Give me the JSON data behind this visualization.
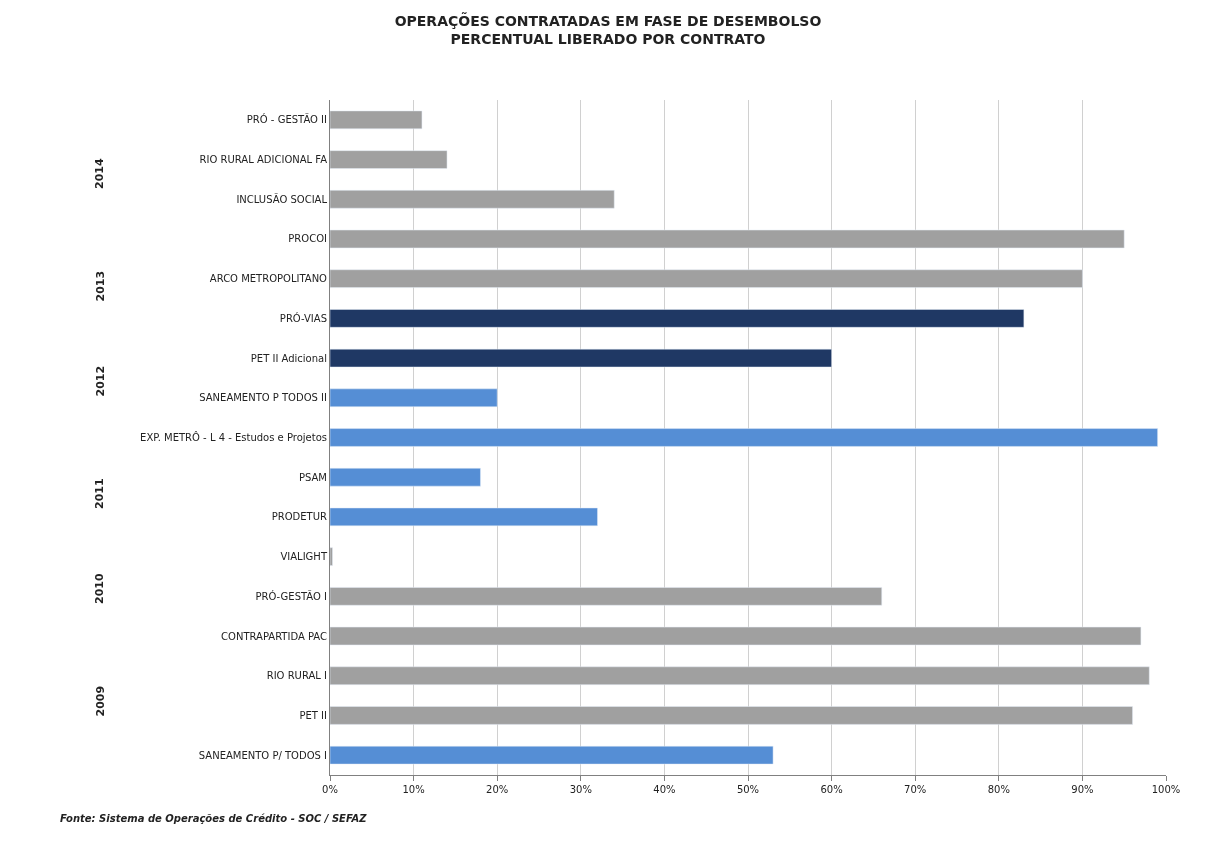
{
  "chart_data": {
    "type": "bar",
    "orientation": "horizontal",
    "title": "OPERAÇÕES CONTRATADAS EM FASE DE DESEMBOLSO\nPERCENTUAL LIBERADO POR CONTRATO",
    "categories": [
      "PRÓ - GESTÃO II",
      "RIO RURAL ADICIONAL FA",
      "INCLUSÃO SOCIAL",
      "PROCOI",
      "ARCO METROPOLITANO",
      "PRÓ-VIAS",
      "PET II Adicional",
      "SANEAMENTO P TODOS II",
      "EXP. METRÔ - L 4 - Estudos e Projetos",
      "PSAM",
      "PRODETUR",
      "VIALIGHT",
      "PRÓ-GESTÃO I",
      "CONTRAPARTIDA PAC",
      "RIO RURAL I",
      "PET II",
      "SANEAMENTO P/ TODOS I"
    ],
    "values": [
      11,
      14,
      34,
      95,
      90,
      83,
      60,
      20,
      99,
      18,
      32,
      0.3,
      66,
      97,
      98,
      96,
      53
    ],
    "colors": [
      "#a0a0a0",
      "#a0a0a0",
      "#a0a0a0",
      "#a0a0a0",
      "#a0a0a0",
      "#1f3864",
      "#1f3864",
      "#558ed5",
      "#558ed5",
      "#558ed5",
      "#558ed5",
      "#a0a0a0",
      "#a0a0a0",
      "#a0a0a0",
      "#a0a0a0",
      "#a0a0a0",
      "#558ed5"
    ],
    "xlim": [
      0,
      100
    ],
    "xticks": [
      {
        "value": 0,
        "label": "0%"
      },
      {
        "value": 10,
        "label": "10%"
      },
      {
        "value": 20,
        "label": "20%"
      },
      {
        "value": 30,
        "label": "30%"
      },
      {
        "value": 40,
        "label": "40%"
      },
      {
        "value": 50,
        "label": "50%"
      },
      {
        "value": 60,
        "label": "60%"
      },
      {
        "value": 70,
        "label": "70%"
      },
      {
        "value": 80,
        "label": "80%"
      },
      {
        "value": 90,
        "label": "90%"
      },
      {
        "value": 100,
        "label": "100%"
      }
    ],
    "grid": "x",
    "annotations": [
      "2014",
      "2013",
      "2012",
      "2011",
      "2010",
      "2009",
      "Fonte: Sistema de Operações de Crédito - SOC / SEFAZ"
    ]
  }
}
